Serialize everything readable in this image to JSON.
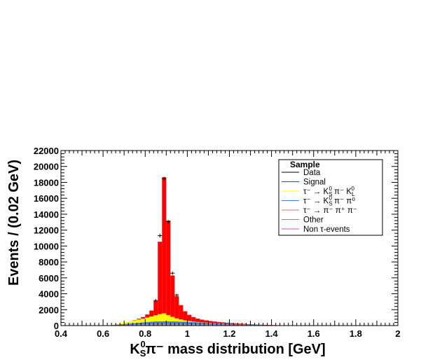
{
  "chart_data": {
    "type": "bar",
    "stacked": true,
    "title": "",
    "xlabel_main": "K",
    "xlabel_sub": "S",
    "xlabel_sup": "0",
    "xlabel_rest": "π⁻ mass distribution  [GeV]",
    "ylabel": "Events / (0.02 GeV)",
    "xlim": [
      0.4,
      2.0
    ],
    "ylim": [
      0,
      22000
    ],
    "x_ticks": [
      0.4,
      0.6,
      0.8,
      1,
      1.2,
      1.4,
      1.6,
      1.8,
      2
    ],
    "x_tick_labels": [
      "0.4",
      "0.6",
      "0.8",
      "1",
      "1.2",
      "1.4",
      "1.6",
      "1.8",
      "2"
    ],
    "y_ticks": [
      0,
      2000,
      4000,
      6000,
      8000,
      10000,
      12000,
      14000,
      16000,
      18000,
      20000,
      22000
    ],
    "y_tick_labels": [
      "0",
      "2000",
      "4000",
      "6000",
      "8000",
      "10000",
      "12000",
      "14000",
      "16000",
      "18000",
      "20000",
      "22000"
    ],
    "bin_width": 0.02,
    "x": [
      0.63,
      0.65,
      0.67,
      0.69,
      0.71,
      0.73,
      0.75,
      0.77,
      0.79,
      0.81,
      0.83,
      0.85,
      0.87,
      0.89,
      0.91,
      0.93,
      0.95,
      0.97,
      0.99,
      1.01,
      1.03,
      1.05,
      1.07,
      1.09,
      1.11,
      1.13,
      1.15,
      1.17,
      1.19,
      1.21,
      1.23,
      1.25,
      1.27,
      1.29,
      1.31,
      1.33,
      1.35,
      1.37,
      1.39,
      1.41,
      1.43,
      1.45,
      1.47,
      1.49,
      1.51,
      1.53,
      1.55,
      1.57,
      1.59,
      1.61
    ],
    "series": [
      {
        "name": "Non τ-events",
        "color": "#e040e0",
        "values": [
          10,
          15,
          20,
          25,
          30,
          35,
          40,
          45,
          50,
          55,
          60,
          60,
          60,
          60,
          60,
          60,
          58,
          56,
          54,
          52,
          50,
          48,
          46,
          44,
          42,
          40,
          38,
          36,
          34,
          32,
          30,
          28,
          26,
          24,
          22,
          20,
          18,
          16,
          14,
          12,
          11,
          10,
          9,
          8,
          7,
          6,
          5,
          4,
          3,
          2
        ]
      },
      {
        "name": "Other",
        "color": "#33cc33",
        "values": [
          5,
          8,
          10,
          12,
          14,
          15,
          16,
          17,
          18,
          19,
          20,
          20,
          20,
          20,
          20,
          20,
          20,
          20,
          19,
          18,
          17,
          16,
          15,
          14,
          13,
          12,
          11,
          10,
          9,
          8,
          7,
          6,
          5,
          4,
          3,
          2,
          2,
          2,
          1,
          1,
          1,
          1,
          1,
          1,
          1,
          0,
          0,
          0,
          0,
          0
        ]
      },
      {
        "name": "τ⁻ → π⁻ π⁺ π⁻",
        "color": "#e07070",
        "values": [
          10,
          20,
          30,
          40,
          50,
          60,
          70,
          80,
          90,
          100,
          110,
          120,
          120,
          120,
          120,
          120,
          115,
          110,
          105,
          100,
          95,
          90,
          85,
          80,
          75,
          70,
          65,
          60,
          55,
          50,
          45,
          40,
          35,
          30,
          25,
          20,
          18,
          16,
          14,
          12,
          10,
          8,
          6,
          5,
          4,
          3,
          2,
          1,
          1,
          0
        ]
      },
      {
        "name": "τ⁻ → K⁰S π⁻ π⁰",
        "color": "#4a7fd4",
        "values": [
          20,
          40,
          70,
          100,
          130,
          160,
          190,
          220,
          250,
          280,
          310,
          330,
          340,
          345,
          345,
          340,
          330,
          320,
          305,
          290,
          275,
          260,
          245,
          230,
          215,
          200,
          185,
          170,
          155,
          140,
          125,
          110,
          95,
          80,
          65,
          50,
          42,
          36,
          30,
          25,
          20,
          16,
          12,
          9,
          6,
          4,
          3,
          2,
          1,
          0
        ]
      },
      {
        "name": "τ⁻ → K⁰S π⁻ K⁰L",
        "color": "#ffff00",
        "values": [
          5,
          20,
          60,
          120,
          190,
          260,
          330,
          400,
          480,
          560,
          640,
          760,
          900,
          1000,
          760,
          560,
          380,
          260,
          170,
          110,
          70,
          40,
          25,
          15,
          8,
          4,
          2,
          1,
          0,
          0,
          0,
          0,
          0,
          0,
          0,
          0,
          0,
          0,
          0,
          0,
          0,
          0,
          0,
          0,
          0,
          0,
          0,
          0,
          0,
          0
        ]
      },
      {
        "name": "Signal",
        "color": "#ff0000",
        "values": [
          0,
          0,
          0,
          0,
          0,
          0,
          40,
          100,
          190,
          380,
          750,
          1800,
          9100,
          17100,
          11900,
          5200,
          2800,
          1800,
          1150,
          780,
          560,
          420,
          330,
          270,
          220,
          185,
          155,
          130,
          110,
          95,
          80,
          70,
          60,
          50,
          42,
          35,
          28,
          22,
          17,
          13,
          10,
          8,
          6,
          5,
          4,
          3,
          2,
          1,
          1,
          0
        ]
      }
    ],
    "data_points": {
      "name": "Data",
      "x": [
        0.85,
        0.87,
        0.89,
        0.91,
        0.93,
        0.95
      ],
      "y": [
        3150,
        11300,
        18450,
        13050,
        6580,
        3850
      ],
      "err": [
        200,
        250,
        250,
        200,
        200,
        150
      ]
    },
    "legend": {
      "title": "Sample",
      "position": "top-right",
      "entries": [
        {
          "label": "Data",
          "color": "#000000"
        },
        {
          "label": "Signal",
          "color": "#ff0000"
        },
        {
          "label": "τ⁻ → K",
          "sub": "S",
          "sup": "0",
          "rest": " π⁻ K",
          "sub2": "L",
          "sup2": "0",
          "color": "#ffff00"
        },
        {
          "label": "τ⁻ → K",
          "sub": "S",
          "sup": "0",
          "rest": " π⁻ π⁰",
          "color": "#4a7fd4"
        },
        {
          "label": "τ⁻ → π⁻ π⁺ π⁻",
          "color": "#e07070"
        },
        {
          "label": "Other",
          "color": "#33cc33"
        },
        {
          "label": "Non τ-events",
          "color": "#e040e0"
        }
      ]
    },
    "grid": false
  }
}
